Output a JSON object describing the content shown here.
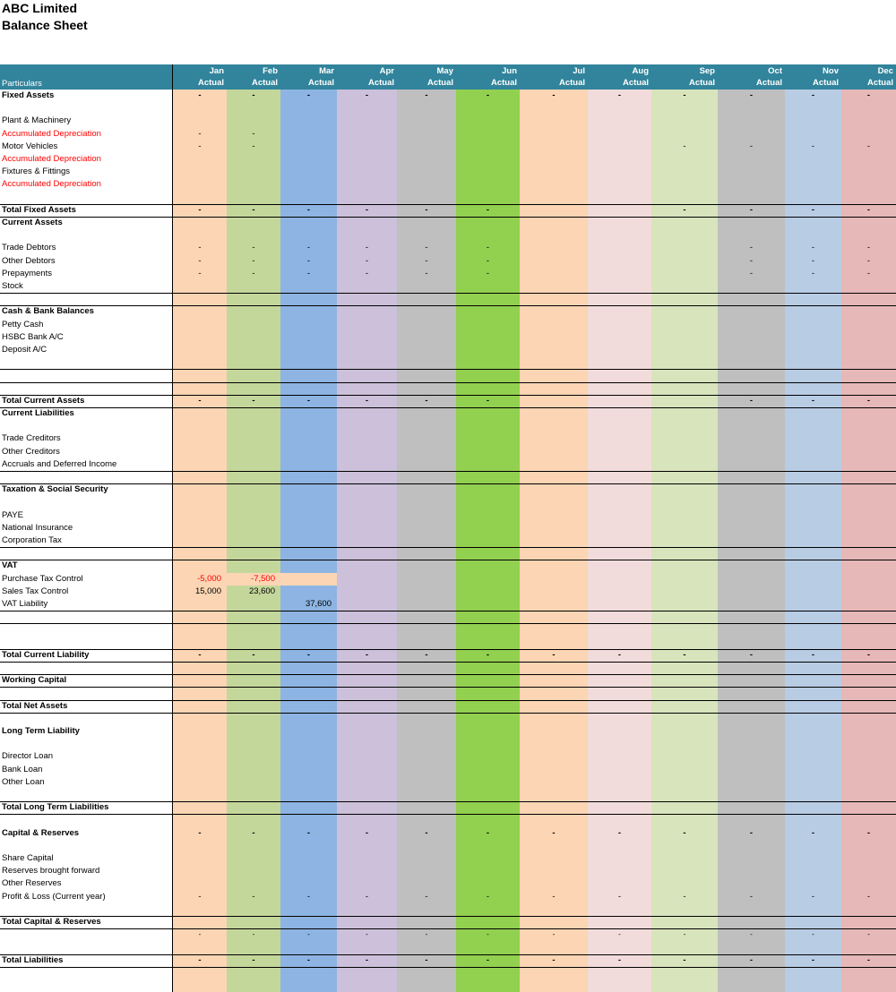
{
  "header": {
    "company": "ABC Limited",
    "report": "Balance Sheet",
    "particulars_label": "Particulars",
    "months": [
      "Jan",
      "Feb",
      "Mar",
      "Apr",
      "May",
      "Jun",
      "Jul",
      "Aug",
      "Sep",
      "Oct",
      "Nov",
      "Dec"
    ],
    "sub_label": "Actual"
  },
  "columns": {
    "colors": [
      "#fcd5b4",
      "#c4d79b",
      "#8db4e2",
      "#ccc0da",
      "#bfbfbf",
      "#92d050",
      "#fcd5b4",
      "#f2dcdb",
      "#d8e4bc",
      "#bfbfbf",
      "#b8cce4",
      "#e6b8b7"
    ]
  },
  "rows": [
    {
      "label": "Fixed Assets",
      "style": "bold",
      "vals": [
        "-",
        "-",
        "-",
        "-",
        "-",
        "-",
        "-",
        "-",
        "-",
        "-",
        "-",
        "-"
      ],
      "line_below": false
    },
    {
      "label": "",
      "vals": []
    },
    {
      "label": "Plant & Machinery",
      "vals": []
    },
    {
      "label": "Accumulated Depreciation",
      "style": "red",
      "vals": [
        "-",
        "-",
        "",
        "",
        "",
        "",
        "",
        "",
        "",
        "",
        "",
        ""
      ]
    },
    {
      "label": "Motor Vehicles",
      "vals": [
        "-",
        "-",
        "",
        "",
        "",
        "",
        "",
        "",
        "-",
        "-",
        "-",
        "-"
      ]
    },
    {
      "label": "Accumulated Depreciation",
      "style": "red",
      "vals": []
    },
    {
      "label": "Fixtures & Fittings",
      "vals": []
    },
    {
      "label": "Accumulated Depreciation",
      "style": "red",
      "vals": []
    },
    {
      "label": "",
      "vals": [],
      "line_below": true
    },
    {
      "label": "Total Fixed Assets",
      "style": "bold",
      "vals": [
        "-",
        "-",
        "-",
        "-",
        "-",
        "-",
        "",
        "",
        "-",
        "-",
        "-",
        "-"
      ],
      "line_below": true
    },
    {
      "label": "Current Assets",
      "style": "bold",
      "vals": []
    },
    {
      "label": "",
      "vals": []
    },
    {
      "label": "Trade Debtors",
      "vals": [
        "-",
        "-",
        "-",
        "-",
        "-",
        "-",
        "",
        "",
        "",
        "-",
        "-",
        "-"
      ]
    },
    {
      "label": "Other Debtors",
      "vals": [
        "-",
        "-",
        "-",
        "-",
        "-",
        "-",
        "",
        "",
        "",
        "-",
        "-",
        "-"
      ]
    },
    {
      "label": "Prepayments",
      "vals": [
        "-",
        "-",
        "-",
        "-",
        "-",
        "-",
        "",
        "",
        "",
        "-",
        "-",
        "-"
      ]
    },
    {
      "label": "Stock",
      "vals": [],
      "line_below": true
    },
    {
      "label": "",
      "vals": [],
      "line_below": true
    },
    {
      "label": "Cash & Bank Balances",
      "style": "bold",
      "vals": []
    },
    {
      "label": "Petty Cash",
      "vals": []
    },
    {
      "label": "HSBC Bank A/C",
      "vals": []
    },
    {
      "label": "Deposit A/C",
      "vals": []
    },
    {
      "label": "",
      "vals": [],
      "line_below": true
    },
    {
      "label": "",
      "vals": [],
      "line_below": true
    },
    {
      "label": "",
      "vals": [],
      "line_below": true
    },
    {
      "label": "Total Current Assets",
      "style": "bold",
      "vals": [
        "-",
        "-",
        "-",
        "-",
        "-",
        "-",
        "",
        "",
        "",
        "-",
        "-",
        "-"
      ],
      "line_below": true
    },
    {
      "label": "Current Liabilities",
      "style": "bold",
      "vals": []
    },
    {
      "label": "",
      "vals": []
    },
    {
      "label": "Trade Creditors",
      "vals": []
    },
    {
      "label": "Other Creditors",
      "vals": []
    },
    {
      "label": "Accruals and Deferred Income",
      "vals": [],
      "line_below": true
    },
    {
      "label": "",
      "vals": [],
      "line_below": true
    },
    {
      "label": "Taxation & Social Security",
      "style": "bold",
      "vals": []
    },
    {
      "label": "",
      "vals": []
    },
    {
      "label": "PAYE",
      "vals": []
    },
    {
      "label": "National Insurance",
      "vals": []
    },
    {
      "label": "Corporation Tax",
      "vals": [],
      "line_below": true
    },
    {
      "label": "",
      "vals": [],
      "line_below": true
    },
    {
      "label": "VAT",
      "style": "bold",
      "vals": []
    },
    {
      "label": "Purchase Tax Control",
      "vals": [
        "-5,000",
        "-7,500",
        "",
        "",
        "",
        "",
        "",
        "",
        "",
        "",
        "",
        ""
      ],
      "num": true,
      "red_vals": true,
      "highlight": true
    },
    {
      "label": "Sales Tax Control",
      "vals": [
        "15,000",
        "23,600",
        "",
        "",
        "",
        "",
        "",
        "",
        "",
        "",
        "",
        ""
      ],
      "num": true
    },
    {
      "label": "VAT Liability",
      "vals": [
        "",
        "",
        "37,600",
        "",
        "",
        "",
        "",
        "",
        "",
        "",
        "",
        ""
      ],
      "num": true,
      "line_below": true
    },
    {
      "label": "",
      "vals": [],
      "line_below": true
    },
    {
      "label": "",
      "vals": []
    },
    {
      "label": "",
      "vals": [],
      "line_below": true
    },
    {
      "label": "Total Current Liability",
      "style": "bold",
      "vals": [
        "-",
        "-",
        "-",
        "-",
        "-",
        "-",
        "-",
        "-",
        "-",
        "-",
        "-",
        "-"
      ],
      "line_below": true
    },
    {
      "label": "",
      "vals": [],
      "line_below": true
    },
    {
      "label": "Working Capital",
      "style": "bold",
      "vals": [],
      "line_below": true
    },
    {
      "label": "",
      "vals": [],
      "line_below": true
    },
    {
      "label": "Total Net Assets",
      "style": "bold",
      "vals": [],
      "line_below": true
    },
    {
      "label": "",
      "vals": []
    },
    {
      "label": "Long Term Liability",
      "style": "bold",
      "vals": []
    },
    {
      "label": "",
      "vals": []
    },
    {
      "label": "Director Loan",
      "vals": []
    },
    {
      "label": "Bank Loan",
      "vals": []
    },
    {
      "label": "Other Loan",
      "vals": []
    },
    {
      "label": "",
      "vals": [],
      "line_below": true
    },
    {
      "label": "Total Long Term Liabilities",
      "style": "bold",
      "vals": [],
      "line_below": true
    },
    {
      "label": "",
      "vals": []
    },
    {
      "label": "Capital & Reserves",
      "style": "bold",
      "vals": [
        "-",
        "-",
        "-",
        "-",
        "-",
        "-",
        "-",
        "-",
        "-",
        "-",
        "-",
        "-"
      ]
    },
    {
      "label": "",
      "vals": []
    },
    {
      "label": "Share Capital",
      "vals": []
    },
    {
      "label": "Reserves brought forward",
      "vals": []
    },
    {
      "label": "Other Reserves",
      "vals": []
    },
    {
      "label": "Profit & Loss (Current year)",
      "vals": [
        "-",
        "-",
        "-",
        "-",
        "-",
        "-",
        "-",
        "-",
        "-",
        "-",
        "-",
        "-"
      ]
    },
    {
      "label": "",
      "vals": [],
      "line_below": true
    },
    {
      "label": "Total Capital & Reserves",
      "style": "bold",
      "vals": [],
      "line_below": true
    },
    {
      "label": "",
      "vals": [
        "-",
        "-",
        "-",
        "-",
        "-",
        "-",
        "-",
        "-",
        "-",
        "-",
        "-",
        "-"
      ],
      "small": true
    },
    {
      "label": "",
      "vals": [],
      "line_below": true
    },
    {
      "label": "Total Liabilities",
      "style": "bold",
      "vals": [
        "-",
        "-",
        "-",
        "-",
        "-",
        "-",
        "-",
        "-",
        "-",
        "-",
        "-",
        "-"
      ],
      "line_below": true
    }
  ]
}
